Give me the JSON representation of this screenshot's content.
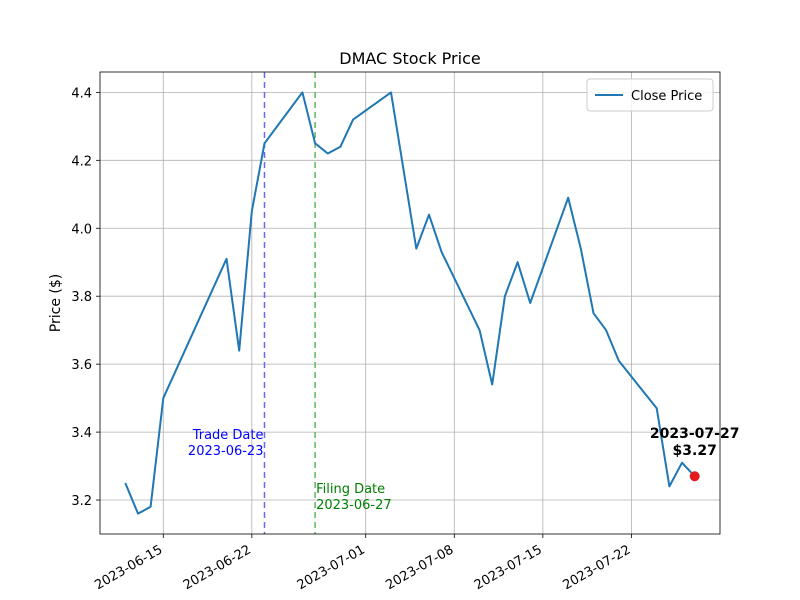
{
  "chart_data": {
    "type": "line",
    "title": "DMAC Stock Price",
    "xlabel": "",
    "ylabel": "Price ($)",
    "x_range": [
      "2023-06-10",
      "2023-07-29"
    ],
    "ylim": [
      3.1,
      4.46
    ],
    "x_ticks": [
      "2023-06-15",
      "2023-06-22",
      "2023-07-01",
      "2023-07-08",
      "2023-07-15",
      "2023-07-22"
    ],
    "y_ticks": [
      "3.2",
      "3.4",
      "3.6",
      "3.8",
      "4.0",
      "4.2",
      "4.4"
    ],
    "grid": true,
    "legend": {
      "position": "top-right",
      "entries": [
        "Close Price"
      ]
    },
    "series": [
      {
        "name": "Close Price",
        "color": "#1f77b4",
        "points": [
          [
            "2023-06-12",
            3.25
          ],
          [
            "2023-06-13",
            3.16
          ],
          [
            "2023-06-14",
            3.18
          ],
          [
            "2023-06-15",
            3.5
          ],
          [
            "2023-06-20",
            3.91
          ],
          [
            "2023-06-21",
            3.64
          ],
          [
            "2023-06-22",
            4.05
          ],
          [
            "2023-06-23",
            4.25
          ],
          [
            "2023-06-26",
            4.4
          ],
          [
            "2023-06-27",
            4.25
          ],
          [
            "2023-06-28",
            4.22
          ],
          [
            "2023-06-29",
            4.24
          ],
          [
            "2023-06-30",
            4.32
          ],
          [
            "2023-07-03",
            4.4
          ],
          [
            "2023-07-05",
            3.94
          ],
          [
            "2023-07-06",
            4.04
          ],
          [
            "2023-07-07",
            3.93
          ],
          [
            "2023-07-10",
            3.7
          ],
          [
            "2023-07-11",
            3.54
          ],
          [
            "2023-07-12",
            3.8
          ],
          [
            "2023-07-13",
            3.9
          ],
          [
            "2023-07-14",
            3.78
          ],
          [
            "2023-07-17",
            4.09
          ],
          [
            "2023-07-18",
            3.94
          ],
          [
            "2023-07-19",
            3.75
          ],
          [
            "2023-07-20",
            3.7
          ],
          [
            "2023-07-21",
            3.61
          ],
          [
            "2023-07-24",
            3.47
          ],
          [
            "2023-07-25",
            3.24
          ],
          [
            "2023-07-26",
            3.31
          ],
          [
            "2023-07-27",
            3.27
          ]
        ]
      }
    ],
    "vlines": [
      {
        "date": "2023-06-23",
        "color": "#6a6ae8",
        "label_lines": [
          "Trade Date",
          "2023-06-23"
        ],
        "label_color": "#0000ff",
        "label_side": "left",
        "label_y": 3.38
      },
      {
        "date": "2023-06-27",
        "color": "#5cb85c",
        "label_lines": [
          "Filing Date",
          "2023-06-27"
        ],
        "label_color": "#008000",
        "label_side": "right",
        "label_y": 3.22
      }
    ],
    "highlight_point": {
      "date": "2023-07-27",
      "value": 3.27,
      "color": "#e31a1c",
      "label_lines": [
        "2023-07-27",
        "$3.27"
      ]
    }
  }
}
